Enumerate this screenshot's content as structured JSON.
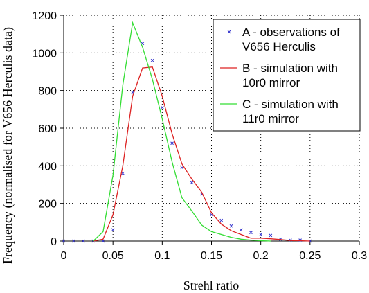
{
  "chart_data": {
    "type": "line",
    "title": "",
    "xlabel": "Strehl ratio",
    "ylabel": "Frequency (normalised for V656 Herculis data)",
    "xlim": [
      0,
      0.3
    ],
    "ylim": [
      0,
      1200
    ],
    "x_ticks": [
      "0",
      "0.05",
      "0.1",
      "0.15",
      "0.2",
      "0.25",
      "0.3"
    ],
    "y_ticks": [
      "0",
      "200",
      "400",
      "600",
      "800",
      "1000",
      "1200"
    ],
    "grid": "dotted",
    "legend_position": "top-right",
    "series": [
      {
        "name": "A - observations of V656 Herculis",
        "style": "markers",
        "marker": "x",
        "color": "#3333cc",
        "points": [
          [
            0,
            0
          ],
          [
            0.01,
            0
          ],
          [
            0.02,
            0
          ],
          [
            0.03,
            0
          ],
          [
            0.04,
            0
          ],
          [
            0.05,
            60
          ],
          [
            0.06,
            360
          ],
          [
            0.07,
            790
          ],
          [
            0.08,
            1050
          ],
          [
            0.09,
            960
          ],
          [
            0.1,
            710
          ],
          [
            0.11,
            520
          ],
          [
            0.12,
            390
          ],
          [
            0.13,
            310
          ],
          [
            0.14,
            250
          ],
          [
            0.15,
            140
          ],
          [
            0.16,
            110
          ],
          [
            0.17,
            80
          ],
          [
            0.18,
            60
          ],
          [
            0.19,
            45
          ],
          [
            0.2,
            35
          ],
          [
            0.21,
            30
          ],
          [
            0.22,
            10
          ],
          [
            0.23,
            5
          ],
          [
            0.24,
            5
          ],
          [
            0.25,
            0
          ]
        ]
      },
      {
        "name": "B - simulation with 10r0 mirror",
        "legend_lines": [
          "B - simulation with",
          "10r0 mirror"
        ],
        "style": "line",
        "color": "#dd2222",
        "points": [
          [
            0.03,
            0
          ],
          [
            0.04,
            10
          ],
          [
            0.05,
            140
          ],
          [
            0.06,
            400
          ],
          [
            0.07,
            770
          ],
          [
            0.08,
            920
          ],
          [
            0.09,
            925
          ],
          [
            0.1,
            770
          ],
          [
            0.11,
            570
          ],
          [
            0.12,
            410
          ],
          [
            0.13,
            330
          ],
          [
            0.14,
            260
          ],
          [
            0.15,
            150
          ],
          [
            0.16,
            90
          ],
          [
            0.17,
            55
          ],
          [
            0.18,
            35
          ],
          [
            0.19,
            15
          ],
          [
            0.2,
            15
          ],
          [
            0.21,
            12
          ],
          [
            0.22,
            8
          ],
          [
            0.23,
            3
          ],
          [
            0.24,
            2
          ],
          [
            0.25,
            0
          ]
        ]
      },
      {
        "name": "C - simulation with 11r0 mirror",
        "legend_lines": [
          "C - simulation with",
          "11r0 mirror"
        ],
        "style": "line",
        "color": "#33dd33",
        "points": [
          [
            0.03,
            0
          ],
          [
            0.04,
            50
          ],
          [
            0.05,
            350
          ],
          [
            0.06,
            830
          ],
          [
            0.07,
            1160
          ],
          [
            0.08,
            1030
          ],
          [
            0.09,
            860
          ],
          [
            0.1,
            650
          ],
          [
            0.11,
            420
          ],
          [
            0.12,
            230
          ],
          [
            0.13,
            160
          ],
          [
            0.14,
            85
          ],
          [
            0.15,
            50
          ],
          [
            0.16,
            35
          ],
          [
            0.17,
            20
          ],
          [
            0.18,
            10
          ],
          [
            0.19,
            5
          ],
          [
            0.2,
            2
          ],
          [
            0.21,
            0
          ]
        ]
      }
    ]
  }
}
